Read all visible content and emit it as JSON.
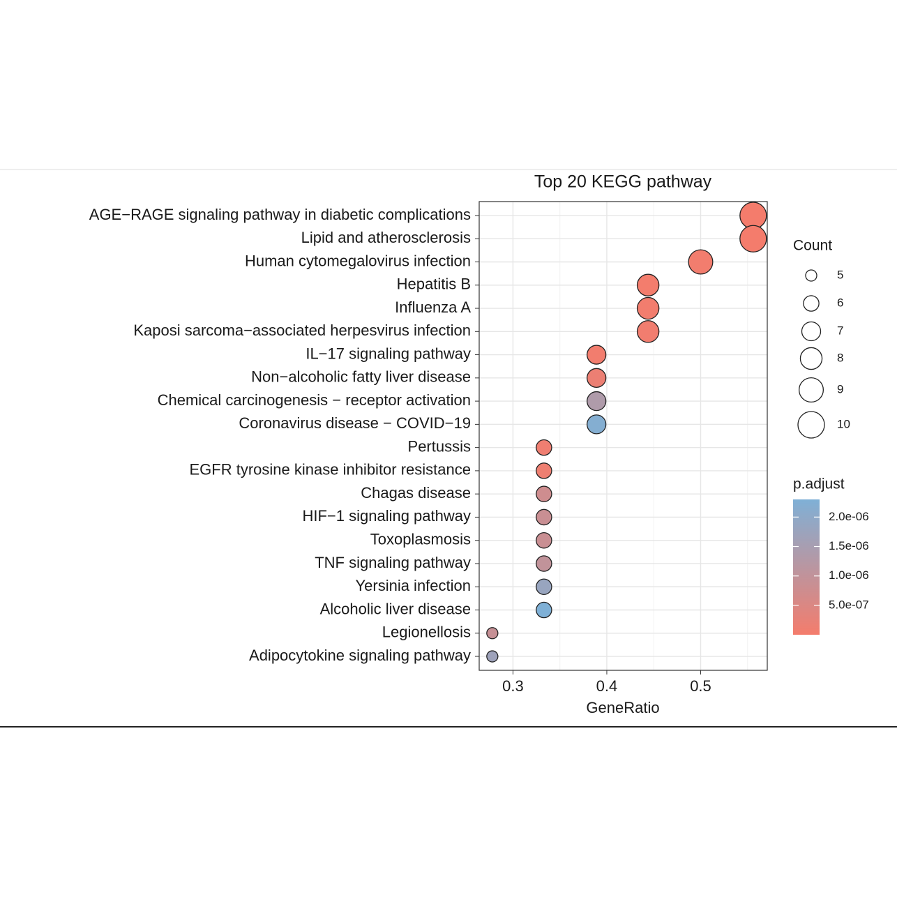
{
  "chart_data": {
    "type": "dot",
    "title": "Top 20 KEGG pathway",
    "x_label": "GeneRatio",
    "categories": [
      "AGE−RAGE signaling pathway in diabetic complications",
      "Lipid and atherosclerosis",
      "Human cytomegalovirus infection",
      "Hepatitis B",
      "Influenza A",
      "Kaposi sarcoma−associated herpesvirus infection",
      "IL−17 signaling pathway",
      "Non−alcoholic fatty liver disease",
      "Chemical carcinogenesis − receptor activation",
      "Coronavirus disease − COVID−19",
      "Pertussis",
      "EGFR tyrosine kinase inhibitor resistance",
      "Chagas disease",
      "HIF−1 signaling pathway",
      "Toxoplasmosis",
      "TNF signaling pathway",
      "Yersinia infection",
      "Alcoholic liver disease",
      "Legionellosis",
      "Adipocytokine signaling pathway"
    ],
    "values": [
      0.556,
      0.556,
      0.5,
      0.444,
      0.444,
      0.444,
      0.389,
      0.389,
      0.389,
      0.389,
      0.333,
      0.333,
      0.333,
      0.333,
      0.333,
      0.333,
      0.333,
      0.333,
      0.278,
      0.278
    ],
    "counts": [
      10,
      10,
      9,
      8,
      8,
      8,
      7,
      7,
      7,
      7,
      6,
      6,
      6,
      6,
      6,
      6,
      6,
      6,
      5,
      5
    ],
    "p_adjust": [
      1.5e-09,
      2e-09,
      5e-08,
      3e-08,
      4e-08,
      6e-08,
      5e-08,
      1.5e-07,
      1.35e-06,
      2.2e-06,
      1e-07,
      1.2e-07,
      7.5e-07,
      8.5e-07,
      8.5e-07,
      1e-06,
      1.8e-06,
      2.3e-06,
      9e-07,
      1.7e-06
    ],
    "xlim": [
      0.264,
      0.571
    ],
    "xticks": [
      0.3,
      0.4,
      0.5
    ],
    "grid": true,
    "low_color": "#f47c6c",
    "high_color": "#7fb0d6",
    "size_legend": {
      "title": "Count",
      "values": [
        5,
        6,
        7,
        8,
        9,
        10
      ]
    },
    "color_legend": {
      "title": "p.adjust",
      "ticks": [
        {
          "value": 2e-06,
          "label": "2.0e-06"
        },
        {
          "value": 1.5e-06,
          "label": "1.5e-06"
        },
        {
          "value": 1e-06,
          "label": "1.0e-06"
        },
        {
          "value": 5e-07,
          "label": "5.0e-07"
        }
      ]
    }
  }
}
